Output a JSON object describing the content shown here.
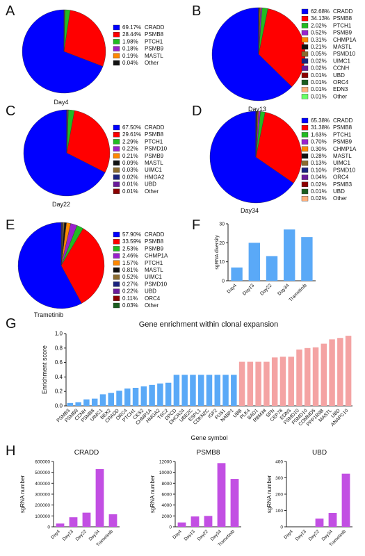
{
  "chart_data": [
    {
      "type": "pie",
      "panel_label": "A",
      "caption": "Day4",
      "slices": [
        {
          "name": "CRADD",
          "value": 69.17,
          "label": "69.17%",
          "color": "#0000ff"
        },
        {
          "name": "PSMB8",
          "value": 28.44,
          "label": "28.44%",
          "color": "#ff0000"
        },
        {
          "name": "PTCH1",
          "value": 1.98,
          "label": "1.98%",
          "color": "#22bb22"
        },
        {
          "name": "PSMB9",
          "value": 0.18,
          "label": "0.18%",
          "color": "#9922cc"
        },
        {
          "name": "MASTL",
          "value": 0.19,
          "label": "0.19%",
          "color": "#ff8800"
        },
        {
          "name": "Other",
          "value": 0.04,
          "label": "0.04%",
          "color": "#111111"
        }
      ]
    },
    {
      "type": "pie",
      "panel_label": "B",
      "caption": "Day13",
      "slices": [
        {
          "name": "CRADD",
          "value": 62.68,
          "label": "62.68%",
          "color": "#0000ff"
        },
        {
          "name": "PSMB8",
          "value": 34.13,
          "label": "34.13%",
          "color": "#ff0000"
        },
        {
          "name": "PTCH1",
          "value": 2.02,
          "label": "2.02%",
          "color": "#22bb22"
        },
        {
          "name": "PSMB9",
          "value": 0.52,
          "label": "0.52%",
          "color": "#9922cc"
        },
        {
          "name": "CHMP1A",
          "value": 0.31,
          "label": "0.31%",
          "color": "#ff8800"
        },
        {
          "name": "MASTL",
          "value": 0.21,
          "label": "0.21%",
          "color": "#111111"
        },
        {
          "name": "PSMD10",
          "value": 0.05,
          "label": "0.05%",
          "color": "#8b6b2e"
        },
        {
          "name": "UIMC1",
          "value": 0.02,
          "label": "0.02%",
          "color": "#1a237e"
        },
        {
          "name": "CCNH",
          "value": 0.02,
          "label": "0.02%",
          "color": "#6a1b9a"
        },
        {
          "name": "UBD",
          "value": 0.01,
          "label": "0.01%",
          "color": "#8b0000"
        },
        {
          "name": "ORC4",
          "value": 0.01,
          "label": "0.01%",
          "color": "#1b5e20"
        },
        {
          "name": "EDN3",
          "value": 0.01,
          "label": "0.01%",
          "color": "#ffb07c"
        },
        {
          "name": "Other",
          "value": 0.01,
          "label": "0.01%",
          "color": "#66ff66"
        }
      ]
    },
    {
      "type": "pie",
      "panel_label": "C",
      "caption": "Day22",
      "slices": [
        {
          "name": "CRADD",
          "value": 67.5,
          "label": "67.50%",
          "color": "#0000ff"
        },
        {
          "name": "PSMB8",
          "value": 29.61,
          "label": "29.61%",
          "color": "#ff0000"
        },
        {
          "name": "PTCH1",
          "value": 2.29,
          "label": "2.29%",
          "color": "#22bb22"
        },
        {
          "name": "PSMD10",
          "value": 0.22,
          "label": "0.22%",
          "color": "#9922cc"
        },
        {
          "name": "PSMB9",
          "value": 0.21,
          "label": "0.21%",
          "color": "#ff8800"
        },
        {
          "name": "MASTL",
          "value": 0.09,
          "label": "0.09%",
          "color": "#111111"
        },
        {
          "name": "UIMC1",
          "value": 0.03,
          "label": "0.03%",
          "color": "#8b6b2e"
        },
        {
          "name": "HMGA2",
          "value": 0.02,
          "label": "0.02%",
          "color": "#1a237e"
        },
        {
          "name": "UBD",
          "value": 0.01,
          "label": "0.01%",
          "color": "#6a1b9a"
        },
        {
          "name": "Other",
          "value": 0.01,
          "label": "0.01%",
          "color": "#8b0000"
        }
      ]
    },
    {
      "type": "pie",
      "panel_label": "D",
      "caption": "Day34",
      "slices": [
        {
          "name": "CRADD",
          "value": 65.38,
          "label": "65.38%",
          "color": "#0000ff"
        },
        {
          "name": "PSMB8",
          "value": 31.38,
          "label": "31.38%",
          "color": "#ff0000"
        },
        {
          "name": "PTCH1",
          "value": 1.63,
          "label": "1.63%",
          "color": "#22bb22"
        },
        {
          "name": "PSMB9",
          "value": 0.7,
          "label": "0.70%",
          "color": "#9922cc"
        },
        {
          "name": "CHMP1A",
          "value": 0.3,
          "label": "0.30%",
          "color": "#ff8800"
        },
        {
          "name": "MASTL",
          "value": 0.28,
          "label": "0.28%",
          "color": "#111111"
        },
        {
          "name": "UIMC1",
          "value": 0.13,
          "label": "0.13%",
          "color": "#8b6b2e"
        },
        {
          "name": "PSMD10",
          "value": 0.1,
          "label": "0.10%",
          "color": "#1a237e"
        },
        {
          "name": "ORC4",
          "value": 0.04,
          "label": "0.04%",
          "color": "#6a1b9a"
        },
        {
          "name": "PSMB3",
          "value": 0.02,
          "label": "0.02%",
          "color": "#8b0000"
        },
        {
          "name": "UBD",
          "value": 0.01,
          "label": "0.01%",
          "color": "#1b5e20"
        },
        {
          "name": "Other",
          "value": 0.02,
          "label": "0.02%",
          "color": "#ffb07c"
        }
      ]
    },
    {
      "type": "pie",
      "panel_label": "E",
      "caption": "Trametinib",
      "slices": [
        {
          "name": "CRADD",
          "value": 57.9,
          "label": "57.90%",
          "color": "#0000ff"
        },
        {
          "name": "PSMB8",
          "value": 33.59,
          "label": "33.59%",
          "color": "#ff0000"
        },
        {
          "name": "PSMB9",
          "value": 2.53,
          "label": "2.53%",
          "color": "#22bb22"
        },
        {
          "name": "CHMP1A",
          "value": 2.46,
          "label": "2.46%",
          "color": "#9922cc"
        },
        {
          "name": "PTCH1",
          "value": 1.57,
          "label": "1.57%",
          "color": "#ff8800"
        },
        {
          "name": "MASTL",
          "value": 0.81,
          "label": "0.81%",
          "color": "#111111"
        },
        {
          "name": "UIMC1",
          "value": 0.52,
          "label": "0.52%",
          "color": "#8b6b2e"
        },
        {
          "name": "PSMD10",
          "value": 0.27,
          "label": "0.27%",
          "color": "#1a237e"
        },
        {
          "name": "UBD",
          "value": 0.22,
          "label": "0.22%",
          "color": "#6a1b9a"
        },
        {
          "name": "ORC4",
          "value": 0.11,
          "label": "0.11%",
          "color": "#8b0000"
        },
        {
          "name": "Other",
          "value": 0.03,
          "label": "0.03%",
          "color": "#1b5e20"
        }
      ]
    },
    {
      "type": "bar",
      "panel_label": "F",
      "categories": [
        "Day4",
        "Day13",
        "Day22",
        "Day34",
        "Trametinib"
      ],
      "values": [
        7,
        20,
        13,
        27,
        23
      ],
      "ylabel": "sgRNA diversity",
      "ylim": [
        0,
        30
      ],
      "yticks": [
        0,
        10,
        20,
        30
      ],
      "bar_color": "#5aa9f7"
    },
    {
      "type": "bar",
      "panel_label": "G",
      "title": "Gene enrichment within clonal expansion",
      "xlabel": "Gene symbol",
      "ylabel": "Enrichment score",
      "ylim": [
        0,
        1.0
      ],
      "yticks": [
        "0.0",
        "0.2",
        "0.4",
        "0.6",
        "0.8",
        "1.0"
      ],
      "colors": {
        "blue": "#5aa9f7",
        "pink": "#f4a3a3"
      },
      "categories": [
        "PSMB3",
        "PSMB9",
        "CCNH",
        "PSMB8",
        "UIMC1",
        "BEX2",
        "CRADD",
        "ORC4",
        "PTCH1",
        "CKS2",
        "CHMP1A",
        "HMGA2",
        "TSC2",
        "DPCD",
        "DHCR24",
        "UBE2C",
        "ESPL1",
        "CDKN2C",
        "IGF2",
        "FUS1",
        "NABP1",
        "UBB",
        "PLK4",
        "BAD1",
        "RBM38",
        "SFN",
        "CEP78",
        "EDN3",
        "PSMD10",
        "PSMD10",
        "COMMD5",
        "PPP1R9B",
        "MASTL",
        "UBD",
        "ANAPC10"
      ],
      "values": [
        0.04,
        0.05,
        0.09,
        0.1,
        0.16,
        0.18,
        0.21,
        0.24,
        0.25,
        0.27,
        0.29,
        0.31,
        0.32,
        0.43,
        0.43,
        0.43,
        0.43,
        0.43,
        0.43,
        0.43,
        0.43,
        0.61,
        0.61,
        0.61,
        0.61,
        0.67,
        0.68,
        0.68,
        0.78,
        0.8,
        0.81,
        0.86,
        0.92,
        0.94,
        0.97
      ],
      "group": [
        "blue",
        "blue",
        "blue",
        "blue",
        "blue",
        "blue",
        "blue",
        "blue",
        "blue",
        "blue",
        "blue",
        "blue",
        "blue",
        "blue",
        "blue",
        "blue",
        "blue",
        "blue",
        "blue",
        "blue",
        "blue",
        "pink",
        "pink",
        "pink",
        "pink",
        "pink",
        "pink",
        "pink",
        "pink",
        "pink",
        "pink",
        "pink",
        "pink",
        "pink",
        "pink"
      ]
    },
    {
      "type": "bar",
      "panel_label": "H",
      "title": "CRADD",
      "categories": [
        "Day4",
        "Day13",
        "Day22",
        "Day34",
        "Trametinib"
      ],
      "values": [
        30000,
        88000,
        130000,
        530000,
        115000
      ],
      "ylabel": "sgRNA number",
      "ylim": [
        0,
        600000
      ],
      "yticks": [
        0,
        100000,
        200000,
        300000,
        400000,
        500000,
        600000
      ],
      "bar_color": "#c24fe3"
    },
    {
      "type": "bar",
      "panel_label": "",
      "title": "PSMB8",
      "categories": [
        "Day4",
        "Day13",
        "Day22",
        "Day34",
        "Trametinib"
      ],
      "values": [
        800,
        1900,
        2000,
        11700,
        8800
      ],
      "ylabel": "sgRNA number",
      "ylim": [
        0,
        12000
      ],
      "yticks": [
        0,
        2000,
        4000,
        6000,
        8000,
        10000,
        12000
      ],
      "bar_color": "#c24fe3"
    },
    {
      "type": "bar",
      "panel_label": "",
      "title": "UBD",
      "categories": [
        "Day4",
        "Day13",
        "Day22",
        "Day34",
        "Trametinib"
      ],
      "values": [
        0,
        0,
        50,
        85,
        325
      ],
      "ylabel": "sgRNA number",
      "ylim": [
        0,
        400
      ],
      "yticks": [
        0,
        100,
        200,
        300,
        400
      ],
      "bar_color": "#c24fe3"
    }
  ]
}
